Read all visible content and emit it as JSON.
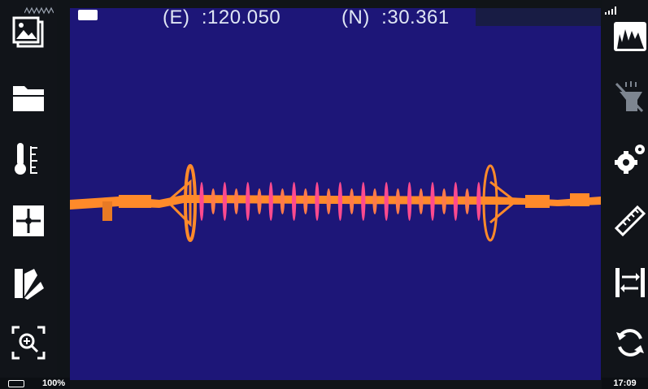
{
  "header": {
    "east_label": "(E)",
    "east_value": ":120.050",
    "north_label": "(N)",
    "north_value": ":30.361"
  },
  "status": {
    "battery_percent": "100%",
    "time": "17:09"
  },
  "left_toolbar": [
    {
      "icon": "gallery-icon"
    },
    {
      "icon": "folder-icon"
    },
    {
      "icon": "thermometer-icon"
    },
    {
      "icon": "crosshair-icon"
    },
    {
      "icon": "palette-icon"
    },
    {
      "icon": "zoom-icon"
    }
  ],
  "right_toolbar": [
    {
      "icon": "histogram-icon"
    },
    {
      "icon": "flashlight-icon"
    },
    {
      "icon": "settings-icon"
    },
    {
      "icon": "ruler-icon"
    },
    {
      "icon": "swap-icon"
    },
    {
      "icon": "refresh-icon"
    }
  ],
  "colors": {
    "thermal_background": "#1d1678",
    "hot": "#ff8a2a",
    "warm": "#ff3a8a"
  }
}
